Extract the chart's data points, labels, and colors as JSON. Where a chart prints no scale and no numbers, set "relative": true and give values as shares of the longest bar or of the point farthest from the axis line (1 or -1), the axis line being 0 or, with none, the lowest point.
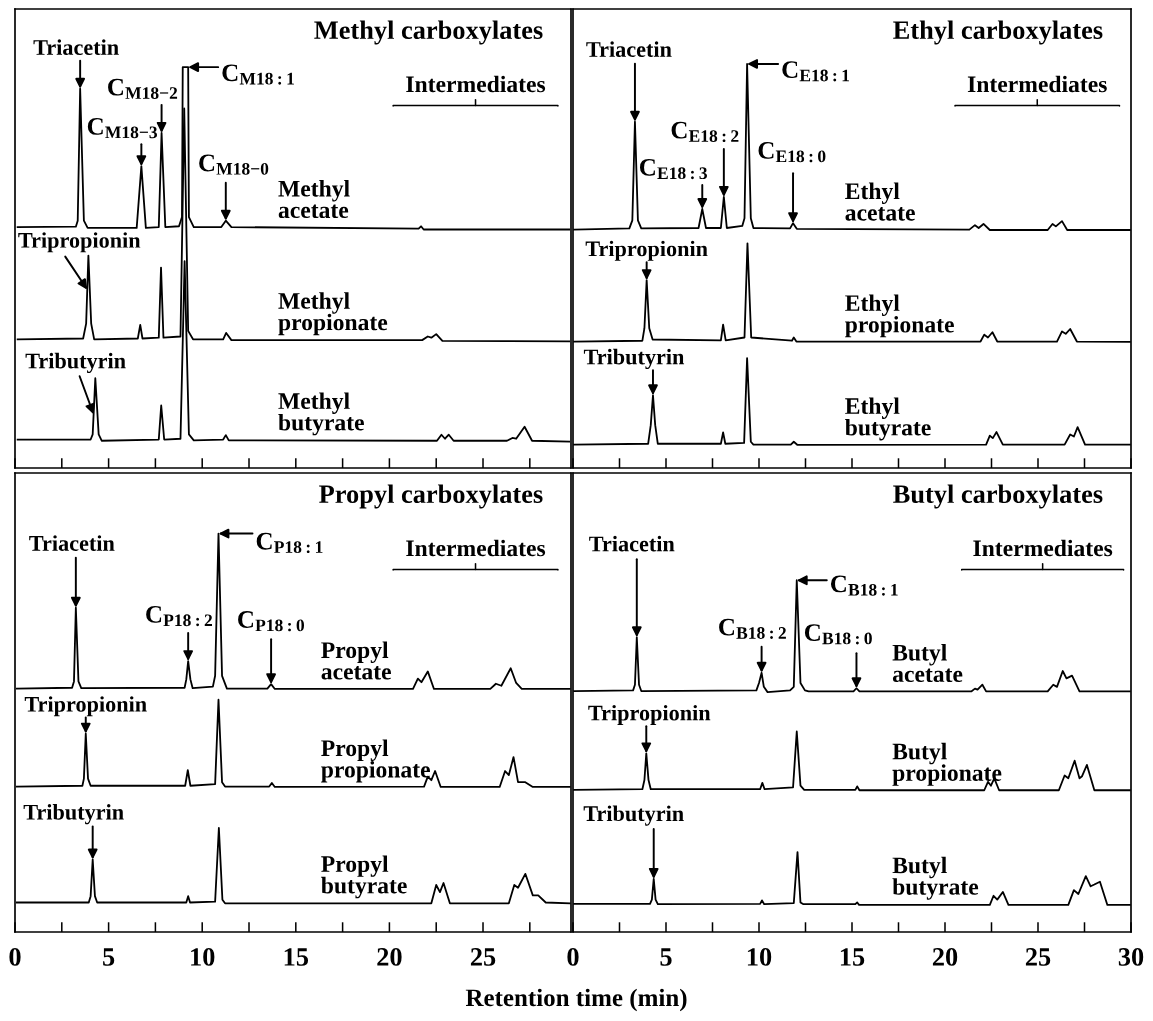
{
  "chart_data": [
    {
      "type": "line",
      "relative": true,
      "title": "Methyl carboxylates",
      "xlim": [
        0,
        29.7
      ],
      "tick_labels": false,
      "xticks": [
        0,
        {
          "value": 2.5,
          "label": null
        },
        5,
        {
          "value": 7.5,
          "label": null
        },
        10,
        {
          "value": 12.5,
          "label": null
        },
        15,
        {
          "value": 17.5,
          "label": null
        },
        20,
        {
          "value": 22.5,
          "label": null
        },
        25,
        {
          "value": 27.5,
          "label": null
        }
      ],
      "series": [
        {
          "name": "Methyl acetate",
          "color": "#000000",
          "x": [
            0.14,
            3.25,
            3.35,
            3.48,
            3.68,
            3.88,
            6.5,
            6.75,
            6.99,
            7.68,
            7.83,
            8.03,
            8.76,
            8.92,
            8.96,
            9.25,
            9.29,
            9.55,
            11.02,
            11.26,
            11.56,
            21.56,
            21.69,
            21.83,
            29.6
          ],
          "values": [
            0.601,
            0.602,
            0.617,
            0.946,
            0.617,
            0.599,
            0.599,
            0.753,
            0.599,
            0.601,
            0.836,
            0.601,
            0.603,
            0.626,
            1.0,
            1.0,
            0.626,
            0.601,
            0.601,
            0.617,
            0.601,
            0.597,
            0.603,
            0.595,
            0.595
          ]
        },
        {
          "name": "Methyl propionate",
          "color": "#000000",
          "x": [
            0.14,
            3.64,
            3.8,
            3.92,
            4.07,
            4.23,
            6.56,
            6.69,
            6.81,
            7.68,
            7.8,
            7.93,
            8.84,
            9.04,
            9.25,
            9.51,
            11.12,
            11.28,
            11.56,
            21.75,
            22.05,
            22.24,
            22.5,
            22.83,
            29.6
          ],
          "values": [
            0.321,
            0.323,
            0.36,
            0.53,
            0.36,
            0.321,
            0.323,
            0.357,
            0.323,
            0.325,
            0.5,
            0.325,
            0.328,
            0.897,
            0.342,
            0.321,
            0.321,
            0.337,
            0.319,
            0.319,
            0.328,
            0.325,
            0.334,
            0.317,
            0.316
          ]
        },
        {
          "name": "Methyl butyrate",
          "color": "#000000",
          "x": [
            0.14,
            4.04,
            4.15,
            4.29,
            4.47,
            4.63,
            7.68,
            7.81,
            7.97,
            8.84,
            9.06,
            9.29,
            9.55,
            11.12,
            11.26,
            11.42,
            22.54,
            22.78,
            22.97,
            23.17,
            23.43,
            26.28,
            26.57,
            26.77,
            27.22,
            27.62,
            29.6
          ],
          "values": [
            0.071,
            0.071,
            0.084,
            0.224,
            0.084,
            0.068,
            0.071,
            0.156,
            0.071,
            0.073,
            0.516,
            0.084,
            0.069,
            0.071,
            0.082,
            0.069,
            0.068,
            0.083,
            0.073,
            0.083,
            0.068,
            0.068,
            0.075,
            0.073,
            0.103,
            0.068,
            0.066
          ]
        }
      ],
      "annotations": [
        {
          "text": "Triacetin",
          "x": 3.48,
          "y": 0.946
        },
        {
          "text": "C$_{M18−3}$",
          "x": 6.75,
          "y": 0.753
        },
        {
          "text": "C$_{M18−2}$",
          "x": 7.83,
          "y": 0.836
        },
        {
          "text": "C$_{M18:1}$",
          "x": 9.25,
          "y": 1.0
        },
        {
          "text": "C$_{M18−0}$",
          "x": 11.26,
          "y": 0.617
        },
        {
          "text": "Tripropionin",
          "x": 3.86,
          "y": 0.445
        },
        {
          "text": "Tributyrin",
          "x": 4.2,
          "y": 0.134
        },
        "Intermediates"
      ]
    },
    {
      "type": "line",
      "relative": true,
      "title": "Ethyl carboxylates",
      "xlim": [
        0,
        30
      ],
      "tick_labels": false,
      "xticks": [
        0,
        {
          "value": 2.5,
          "label": null
        },
        5,
        {
          "value": 7.5,
          "label": null
        },
        10,
        {
          "value": 12.5,
          "label": null
        },
        15,
        {
          "value": 17.5,
          "label": null
        },
        20,
        {
          "value": 22.5,
          "label": null
        },
        25,
        {
          "value": 27.5,
          "label": null
        },
        30
      ],
      "series": [
        {
          "name": "Ethyl acetate",
          "color": "#000000",
          "x": [
            0.06,
            3.03,
            3.19,
            3.33,
            3.49,
            3.67,
            6.75,
            6.95,
            7.15,
            7.95,
            8.11,
            8.27,
            9.1,
            9.22,
            9.36,
            9.56,
            9.7,
            11.67,
            11.83,
            12.03,
            21.31,
            21.61,
            21.81,
            22.07,
            22.41,
            25.52,
            25.78,
            25.96,
            26.29,
            26.57,
            29.94
          ],
          "values": [
            0.59,
            0.593,
            0.613,
            0.857,
            0.613,
            0.593,
            0.594,
            0.641,
            0.594,
            0.594,
            0.671,
            0.594,
            0.599,
            0.618,
            1.0,
            0.618,
            0.594,
            0.593,
            0.606,
            0.592,
            0.59,
            0.601,
            0.594,
            0.604,
            0.589,
            0.589,
            0.604,
            0.598,
            0.611,
            0.589,
            0.589
          ]
        },
        {
          "name": "Ethyl propionate",
          "color": "#000000",
          "x": [
            0.06,
            3.73,
            3.84,
            3.96,
            4.1,
            4.28,
            7.95,
            8.07,
            8.21,
            9.22,
            9.38,
            9.58,
            11.77,
            11.87,
            12.01,
            21.91,
            22.11,
            22.31,
            22.55,
            22.81,
            26.02,
            26.29,
            26.49,
            26.73,
            27.09,
            29.94
          ],
          "values": [
            0.313,
            0.315,
            0.346,
            0.465,
            0.346,
            0.318,
            0.316,
            0.355,
            0.316,
            0.323,
            0.556,
            0.323,
            0.315,
            0.323,
            0.313,
            0.313,
            0.33,
            0.323,
            0.336,
            0.313,
            0.313,
            0.338,
            0.332,
            0.344,
            0.313,
            0.312
          ]
        },
        {
          "name": "Ethyl butyrate",
          "color": "#000000",
          "x": [
            0.06,
            4.04,
            4.18,
            4.3,
            4.42,
            4.56,
            7.95,
            8.07,
            8.19,
            9.2,
            9.36,
            9.56,
            9.7,
            11.71,
            11.87,
            12.07,
            22.21,
            22.41,
            22.57,
            22.77,
            23.11,
            26.43,
            26.73,
            26.93,
            27.13,
            27.53,
            29.94
          ],
          "values": [
            0.058,
            0.06,
            0.106,
            0.18,
            0.106,
            0.06,
            0.06,
            0.088,
            0.06,
            0.062,
            0.272,
            0.065,
            0.058,
            0.058,
            0.065,
            0.057,
            0.058,
            0.08,
            0.074,
            0.089,
            0.058,
            0.058,
            0.083,
            0.078,
            0.101,
            0.058,
            0.058
          ]
        }
      ],
      "annotations": [
        {
          "text": "Triacetin",
          "x": 3.33,
          "y": 0.857
        },
        {
          "text": "C$_{E18:3}$",
          "x": 6.95,
          "y": 0.641
        },
        {
          "text": "C$_{E18:2}$",
          "x": 8.11,
          "y": 0.671
        },
        {
          "text": "C$_{E18:1}$",
          "x": 9.36,
          "y": 1.0
        },
        {
          "text": "C$_{E18:0}$",
          "x": 11.83,
          "y": 0.606
        },
        {
          "text": "Tripropionin",
          "x": 3.96,
          "y": 0.465
        },
        {
          "text": "Tributyrin",
          "x": 4.3,
          "y": 0.18
        },
        "Intermediates"
      ]
    },
    {
      "type": "line",
      "relative": true,
      "title": "Propyl carboxylates",
      "xlabel": "Retention time (min)",
      "xlim": [
        0,
        29.7
      ],
      "tick_labels": "x",
      "xticks": [
        0,
        {
          "value": 2.5,
          "label": null
        },
        5,
        {
          "value": 7.5,
          "label": null
        },
        10,
        {
          "value": 12.5,
          "label": null
        },
        15,
        {
          "value": 17.5,
          "label": null
        },
        20,
        {
          "value": 22.5,
          "label": null
        },
        25,
        {
          "value": 27.5,
          "label": null
        }
      ],
      "series": [
        {
          "name": "Propyl acetate",
          "color": "#000000",
          "x": [
            0.1,
            3.05,
            3.15,
            3.25,
            3.39,
            3.54,
            9.06,
            9.15,
            9.25,
            9.37,
            9.49,
            10.57,
            10.69,
            10.87,
            11.06,
            11.32,
            13.48,
            13.68,
            13.88,
            21.26,
            21.52,
            21.71,
            22.05,
            22.38,
            25.39,
            25.69,
            25.98,
            26.48,
            26.77,
            27.07,
            29.63
          ],
          "values": [
            0.611,
            0.613,
            0.629,
            0.814,
            0.629,
            0.612,
            0.613,
            0.634,
            0.68,
            0.634,
            0.612,
            0.616,
            0.643,
            1.0,
            0.643,
            0.611,
            0.611,
            0.622,
            0.61,
            0.61,
            0.636,
            0.627,
            0.654,
            0.61,
            0.61,
            0.623,
            0.618,
            0.662,
            0.625,
            0.61,
            0.61
          ]
        },
        {
          "name": "Propyl propionate",
          "color": "#000000",
          "x": [
            0.1,
            3.6,
            3.68,
            3.78,
            3.9,
            4.04,
            9.09,
            9.23,
            9.37,
            10.69,
            10.87,
            11.06,
            11.22,
            13.58,
            13.72,
            13.88,
            21.85,
            22.05,
            22.24,
            22.44,
            22.74,
            25.89,
            26.18,
            26.38,
            26.63,
            26.87,
            27.26,
            27.66,
            29.63
          ],
          "values": [
            0.365,
            0.367,
            0.385,
            0.498,
            0.385,
            0.367,
            0.367,
            0.406,
            0.367,
            0.371,
            0.583,
            0.376,
            0.365,
            0.365,
            0.374,
            0.364,
            0.365,
            0.39,
            0.381,
            0.404,
            0.364,
            0.364,
            0.404,
            0.394,
            0.439,
            0.376,
            0.376,
            0.364,
            0.364
          ]
        },
        {
          "name": "Propyl butyrate",
          "color": "#000000",
          "x": [
            0.1,
            3.94,
            4.04,
            4.15,
            4.27,
            4.39,
            9.15,
            9.25,
            9.35,
            10.69,
            10.89,
            11.08,
            11.22,
            22.24,
            22.5,
            22.7,
            22.89,
            23.23,
            26.38,
            26.67,
            26.87,
            27.26,
            27.66,
            27.95,
            28.35,
            29.63
          ],
          "values": [
            0.074,
            0.074,
            0.09,
            0.182,
            0.09,
            0.074,
            0.074,
            0.09,
            0.074,
            0.076,
            0.261,
            0.081,
            0.072,
            0.072,
            0.118,
            0.1,
            0.123,
            0.072,
            0.072,
            0.118,
            0.111,
            0.146,
            0.092,
            0.092,
            0.074,
            0.072
          ]
        }
      ],
      "annotations": [
        {
          "text": "Triacetin",
          "x": 3.25,
          "y": 0.814
        },
        {
          "text": "C$_{P18:2}$",
          "x": 9.25,
          "y": 0.68
        },
        {
          "text": "C$_{P18:1}$",
          "x": 10.87,
          "y": 1.0
        },
        {
          "text": "C$_{P18:0}$",
          "x": 13.68,
          "y": 0.622
        },
        {
          "text": "Tripropionin",
          "x": 3.78,
          "y": 0.498
        },
        {
          "text": "Tributyrin",
          "x": 4.15,
          "y": 0.182
        },
        "Intermediates"
      ]
    },
    {
      "type": "line",
      "relative": true,
      "title": "Butyl carboxylates",
      "xlim": [
        0,
        30
      ],
      "tick_labels": "x",
      "xticks": [
        0,
        {
          "value": 2.5,
          "label": null
        },
        5,
        {
          "value": 7.5,
          "label": null
        },
        10,
        {
          "value": 12.5,
          "label": null
        },
        15,
        {
          "value": 17.5,
          "label": null
        },
        20,
        {
          "value": 22.5,
          "label": null
        },
        25,
        {
          "value": 27.5,
          "label": null
        },
        30
      ],
      "series": [
        {
          "name": "Butyl acetate",
          "color": "#000000",
          "x": [
            0.06,
            3.23,
            3.33,
            3.43,
            3.55,
            3.67,
            9.86,
            10.0,
            10.14,
            10.26,
            10.46,
            11.67,
            11.87,
            12.03,
            12.23,
            12.47,
            12.67,
            15.08,
            15.24,
            15.4,
            21.41,
            21.61,
            21.75,
            22.01,
            22.21,
            25.52,
            25.82,
            26.02,
            26.33,
            26.53,
            26.83,
            27.23,
            29.94
          ],
          "values": [
            0.685,
            0.687,
            0.703,
            0.838,
            0.703,
            0.685,
            0.687,
            0.708,
            0.737,
            0.697,
            0.682,
            0.687,
            0.697,
            1.0,
            0.708,
            0.687,
            0.684,
            0.684,
            0.693,
            0.684,
            0.684,
            0.692,
            0.689,
            0.703,
            0.684,
            0.684,
            0.703,
            0.697,
            0.742,
            0.721,
            0.729,
            0.684,
            0.684
          ]
        },
        {
          "name": "Butyl propionate",
          "color": "#000000",
          "x": [
            0.06,
            3.73,
            3.84,
            3.94,
            4.06,
            4.18,
            10.06,
            10.18,
            10.3,
            11.83,
            12.03,
            12.23,
            12.43,
            15.18,
            15.28,
            15.4,
            22.11,
            22.31,
            22.47,
            22.65,
            22.91,
            26.12,
            26.43,
            26.63,
            26.97,
            27.23,
            27.37,
            27.63,
            28.03,
            29.94
          ],
          "values": [
            0.404,
            0.406,
            0.432,
            0.508,
            0.432,
            0.406,
            0.406,
            0.424,
            0.406,
            0.411,
            0.57,
            0.416,
            0.404,
            0.404,
            0.414,
            0.403,
            0.403,
            0.427,
            0.416,
            0.437,
            0.403,
            0.403,
            0.445,
            0.437,
            0.487,
            0.437,
            0.443,
            0.475,
            0.403,
            0.403
          ]
        },
        {
          "name": "Butyl butyrate",
          "color": "#000000",
          "x": [
            0.06,
            4.14,
            4.24,
            4.34,
            4.44,
            4.56,
            10.06,
            10.16,
            10.28,
            11.87,
            12.07,
            12.23,
            12.39,
            15.18,
            15.28,
            15.38,
            22.41,
            22.61,
            22.81,
            23.11,
            23.41,
            26.63,
            26.93,
            27.17,
            27.57,
            27.83,
            28.03,
            28.33,
            28.73,
            29.94
          ],
          "values": [
            0.08,
            0.08,
            0.092,
            0.151,
            0.092,
            0.079,
            0.08,
            0.09,
            0.079,
            0.082,
            0.227,
            0.084,
            0.079,
            0.079,
            0.084,
            0.077,
            0.077,
            0.103,
            0.092,
            0.114,
            0.077,
            0.077,
            0.119,
            0.108,
            0.159,
            0.13,
            0.135,
            0.143,
            0.077,
            0.077
          ]
        }
      ],
      "annotations": [
        {
          "text": "Triacetin",
          "x": 3.43,
          "y": 0.838
        },
        {
          "text": "C$_{B18:2}$",
          "x": 10.14,
          "y": 0.737
        },
        {
          "text": "C$_{B18:1}$",
          "x": 12.03,
          "y": 1.0
        },
        {
          "text": "C$_{B18:0}$",
          "x": 15.24,
          "y": 0.693
        },
        {
          "text": "Tripropionin",
          "x": 3.94,
          "y": 0.508
        },
        {
          "text": "Tributyrin",
          "x": 4.34,
          "y": 0.151
        },
        "Intermediates"
      ]
    }
  ]
}
